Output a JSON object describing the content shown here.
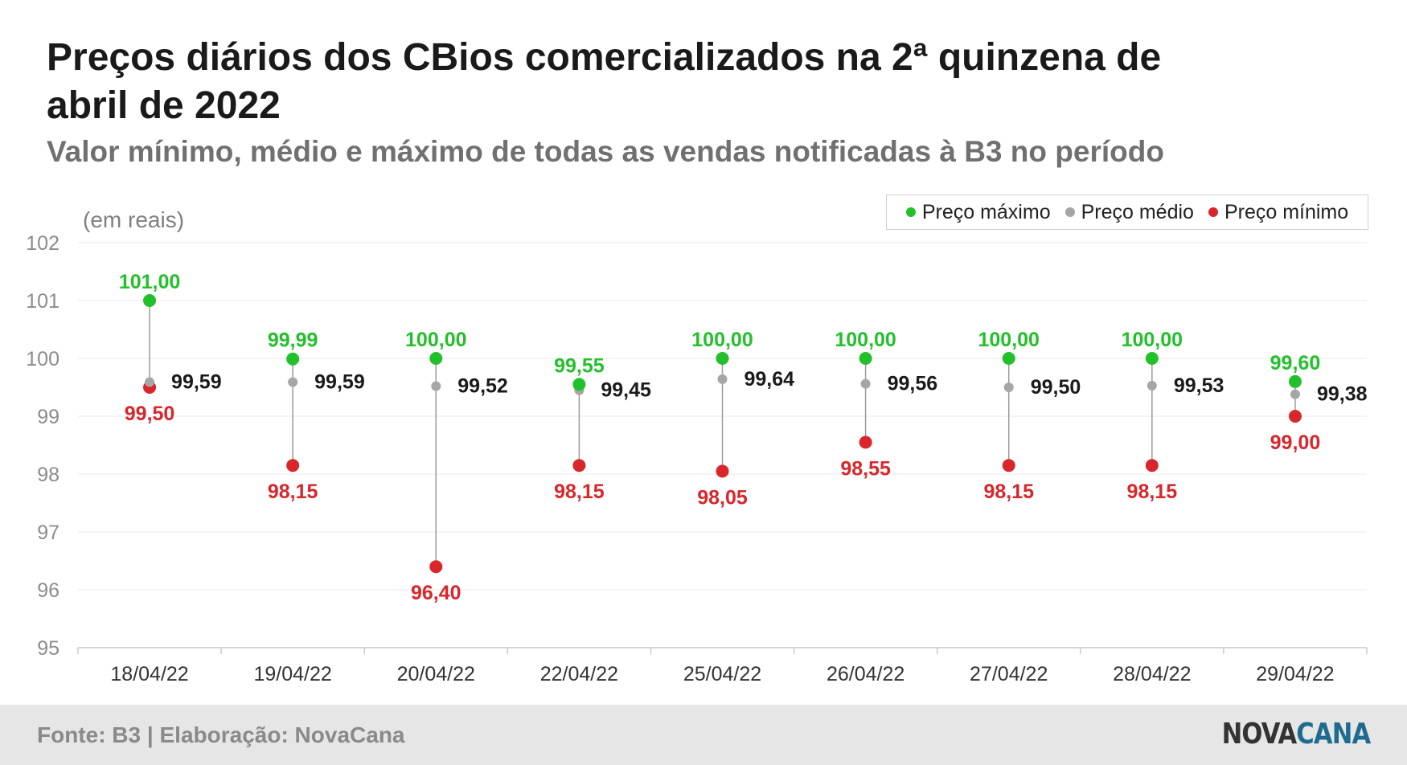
{
  "header": {
    "title": "Preços diários dos CBios comercializados na 2ª quinzena de abril de 2022",
    "subtitle": "Valor mínimo, médio e máximo de todas as vendas notificadas à B3 no período",
    "unit_note": "(em reais)"
  },
  "legend": {
    "items": [
      {
        "label": "Preço máximo",
        "color": "#22c02a"
      },
      {
        "label": "Preço médio",
        "color": "#a6a6a6"
      },
      {
        "label": "Preço mínimo",
        "color": "#d9262b"
      }
    ]
  },
  "footer": {
    "source": "Fonte: B3 | Elaboração: NovaCana",
    "logo_part1": "NOVA",
    "logo_part2": "CANA"
  },
  "colors": {
    "max": "#22c02a",
    "mean": "#a6a6a6",
    "min": "#d9262b",
    "mean_label": "#1a1a1a",
    "grid": "#e8e8e8",
    "axis_text": "#8c8c8c",
    "connector": "#9a9a9a"
  },
  "chart_data": {
    "type": "scatter",
    "ylim": [
      95,
      102
    ],
    "yticks": [
      "95",
      "96",
      "97",
      "98",
      "99",
      "100",
      "101",
      "102"
    ],
    "categories": [
      "18/04/22",
      "19/04/22",
      "20/04/22",
      "22/04/22",
      "25/04/22",
      "26/04/22",
      "27/04/22",
      "28/04/22",
      "29/04/22"
    ],
    "series": [
      {
        "name": "Preço máximo",
        "values": [
          101.0,
          99.99,
          100.0,
          99.55,
          100.0,
          100.0,
          100.0,
          100.0,
          99.6
        ],
        "labels": [
          "101,00",
          "99,99",
          "100,00",
          "99,55",
          "100,00",
          "100,00",
          "100,00",
          "100,00",
          "99,60"
        ]
      },
      {
        "name": "Preço médio",
        "values": [
          99.59,
          99.59,
          99.52,
          99.45,
          99.64,
          99.56,
          99.5,
          99.53,
          99.38
        ],
        "labels": [
          "99,59",
          "99,59",
          "99,52",
          "99,45",
          "99,64",
          "99,56",
          "99,50",
          "99,53",
          "99,38"
        ]
      },
      {
        "name": "Preço mínimo",
        "values": [
          99.5,
          98.15,
          96.4,
          98.15,
          98.05,
          98.55,
          98.15,
          98.15,
          99.0
        ],
        "labels": [
          "99,50",
          "98,15",
          "96,40",
          "98,15",
          "98,05",
          "98,55",
          "98,15",
          "98,15",
          "99,00"
        ]
      }
    ],
    "grid": true,
    "legend_position": "top-right"
  }
}
